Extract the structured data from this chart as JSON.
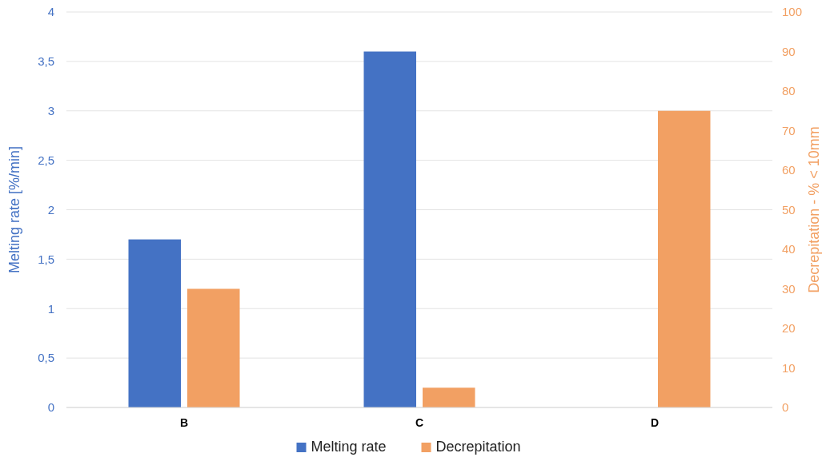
{
  "chart_data": {
    "type": "bar",
    "categories": [
      "B",
      "C",
      "D"
    ],
    "series": [
      {
        "name": "Melting rate",
        "color": "#4472c4",
        "values": [
          1.7,
          3.6,
          null
        ]
      },
      {
        "name": "Decrepitation",
        "color": "#f2a063",
        "values": [
          30,
          5,
          75
        ],
        "axis": "y2"
      }
    ],
    "ylabel": "Melting rate [%/min]",
    "y2label": "Decrepitation - % < 10mm",
    "ylim": [
      0,
      4
    ],
    "yticks": [
      0,
      {
        "value": 0.5,
        "label": "0,5"
      },
      1,
      {
        "value": 1.5,
        "label": "1,5"
      },
      2,
      {
        "value": 2.5,
        "label": "2,5"
      },
      3,
      {
        "value": 3.5,
        "label": "3,5"
      },
      4
    ],
    "y2lim": [
      0,
      100
    ],
    "y2ticks": [
      0,
      10,
      20,
      30,
      40,
      50,
      60,
      70,
      80,
      90,
      100
    ],
    "grid": "y",
    "legend": "bottom"
  }
}
